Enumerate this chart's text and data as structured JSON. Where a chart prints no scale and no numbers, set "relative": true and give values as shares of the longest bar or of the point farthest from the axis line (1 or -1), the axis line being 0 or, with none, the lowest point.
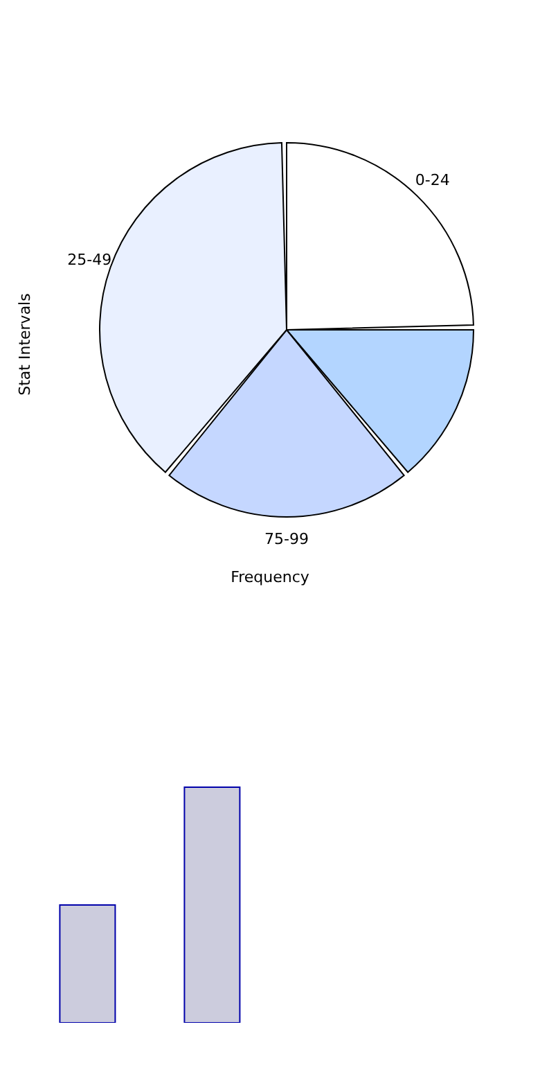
{
  "chart_data": [
    {
      "type": "pie",
      "xlabel": "Frequency",
      "ylabel": "Stat Intervals",
      "categories": [
        "0-24",
        null,
        "75-99",
        "25-49"
      ],
      "values": [
        25,
        14,
        22,
        39
      ],
      "colors": [
        "#ffffff",
        "#b3d5ff",
        "#c5d7ff",
        "#e9f0ff"
      ]
    },
    {
      "type": "bar",
      "relative": true,
      "categories": [
        null,
        null
      ],
      "values": [
        0.5,
        1
      ],
      "color": "#ccccdd"
    }
  ]
}
